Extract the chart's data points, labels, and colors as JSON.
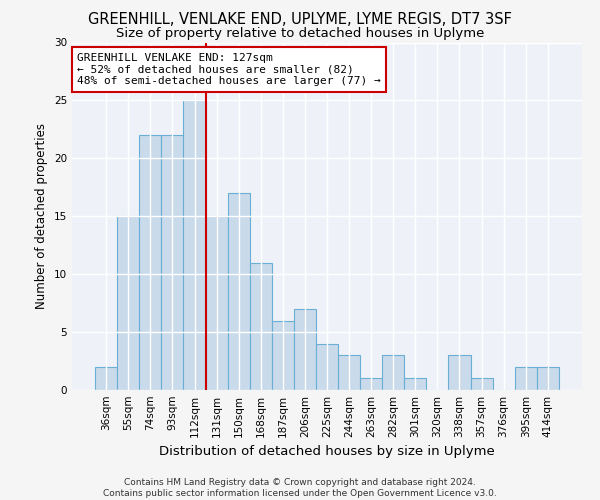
{
  "title_line1": "GREENHILL, VENLAKE END, UPLYME, LYME REGIS, DT7 3SF",
  "title_line2": "Size of property relative to detached houses in Uplyme",
  "xlabel": "Distribution of detached houses by size in Uplyme",
  "ylabel": "Number of detached properties",
  "categories": [
    "36sqm",
    "55sqm",
    "74sqm",
    "93sqm",
    "112sqm",
    "131sqm",
    "150sqm",
    "168sqm",
    "187sqm",
    "206sqm",
    "225sqm",
    "244sqm",
    "263sqm",
    "282sqm",
    "301sqm",
    "320sqm",
    "338sqm",
    "357sqm",
    "376sqm",
    "395sqm",
    "414sqm"
  ],
  "values": [
    2,
    15,
    22,
    22,
    25,
    15,
    17,
    11,
    6,
    7,
    4,
    3,
    1,
    3,
    1,
    0,
    3,
    1,
    0,
    2,
    2
  ],
  "bar_color": "#c9daea",
  "bar_edge_color": "#6aaed6",
  "bar_linewidth": 0.8,
  "red_line_color": "#cc0000",
  "annotation_text": "GREENHILL VENLAKE END: 127sqm\n← 52% of detached houses are smaller (82)\n48% of semi-detached houses are larger (77) →",
  "annotation_box_color": "#ffffff",
  "annotation_box_edge": "#cc0000",
  "footer_line1": "Contains HM Land Registry data © Crown copyright and database right 2024.",
  "footer_line2": "Contains public sector information licensed under the Open Government Licence v3.0.",
  "ylim": [
    0,
    30
  ],
  "yticks": [
    0,
    5,
    10,
    15,
    20,
    25,
    30
  ],
  "background_color": "#eef2f8",
  "grid_color": "#ffffff",
  "title_fontsize": 10.5,
  "subtitle_fontsize": 9.5,
  "xlabel_fontsize": 9.5,
  "ylabel_fontsize": 8.5,
  "tick_fontsize": 7.5,
  "annotation_fontsize": 8,
  "footer_fontsize": 6.5
}
